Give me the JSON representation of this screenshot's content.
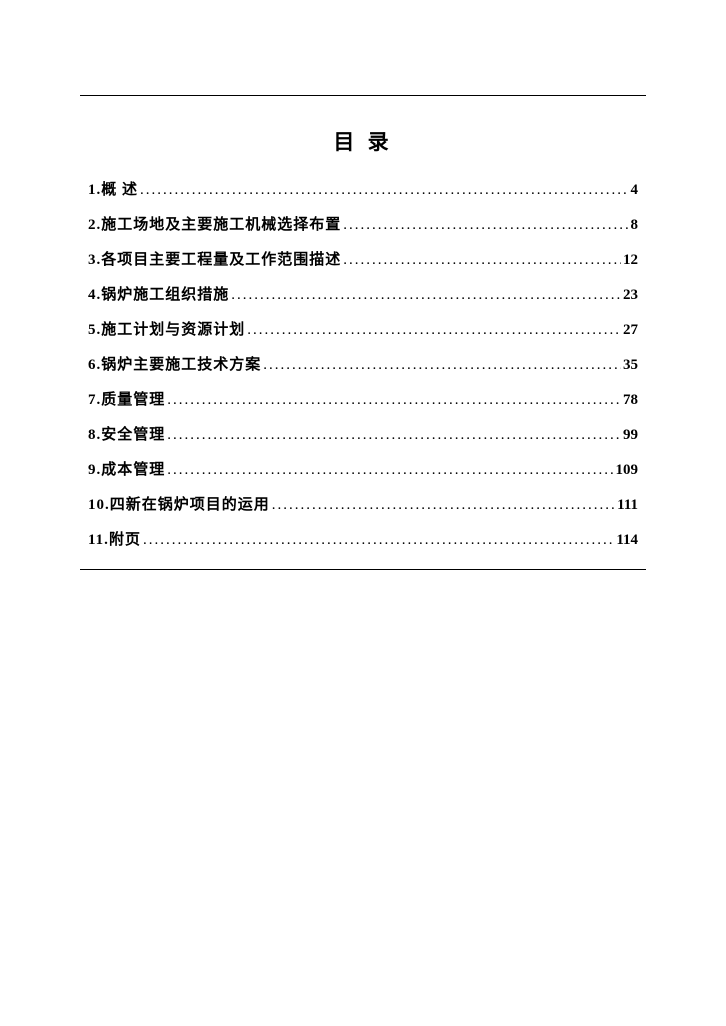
{
  "toc": {
    "title": "目 录",
    "title_fontsize": 21,
    "title_letterspacing": 4,
    "item_fontsize": 15,
    "item_lineheight": 30,
    "text_color": "#000000",
    "background_color": "#ffffff",
    "border_color": "#000000",
    "entries": [
      {
        "num": "1.",
        "label": "概 述",
        "page": "4"
      },
      {
        "num": "2.",
        "label": "施工场地及主要施工机械选择布置",
        "page": "8"
      },
      {
        "num": "3.",
        "label": "各项目主要工程量及工作范围描述",
        "page": "12"
      },
      {
        "num": "4.",
        "label": "锅炉施工组织措施",
        "page": "23"
      },
      {
        "num": "5.",
        "label": "施工计划与资源计划",
        "page": "27"
      },
      {
        "num": "6.",
        "label": "锅炉主要施工技术方案",
        "page": "35"
      },
      {
        "num": "7.",
        "label": "质量管理",
        "page": "78"
      },
      {
        "num": "8.",
        "label": "安全管理",
        "page": "99"
      },
      {
        "num": "9.",
        "label": "成本管理",
        "page": "109"
      },
      {
        "num": "10.",
        "label": " 四新在锅炉项目的运用",
        "page": "111"
      },
      {
        "num": "11.",
        "label": " 附页",
        "page": "114"
      }
    ]
  }
}
